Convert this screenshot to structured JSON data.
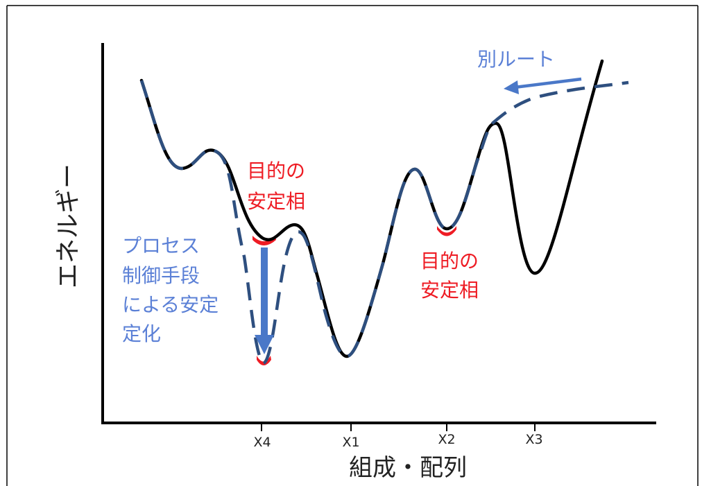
{
  "axes": {
    "y_label": "エネルギー",
    "x_label": "組成・配列",
    "x_ticks": [
      "X4",
      "X1",
      "X2",
      "X3"
    ]
  },
  "annotations": {
    "target_phase_a": [
      "目的の",
      "安定相"
    ],
    "target_phase_b": [
      "目的の",
      "安定相"
    ],
    "process_stabilization": [
      "プロセス",
      "制御手段",
      "による安定",
      "定化"
    ],
    "alternate_route": "別ルート"
  },
  "colors": {
    "axis": "#000000",
    "energy_curve": "#000000",
    "alternate_curve": "#2e4f7f",
    "highlight": "#ee1c24",
    "arrow": "#4a78c8",
    "annotation_blue": "#5b80d6",
    "annotation_red": "#ee1c24"
  }
}
